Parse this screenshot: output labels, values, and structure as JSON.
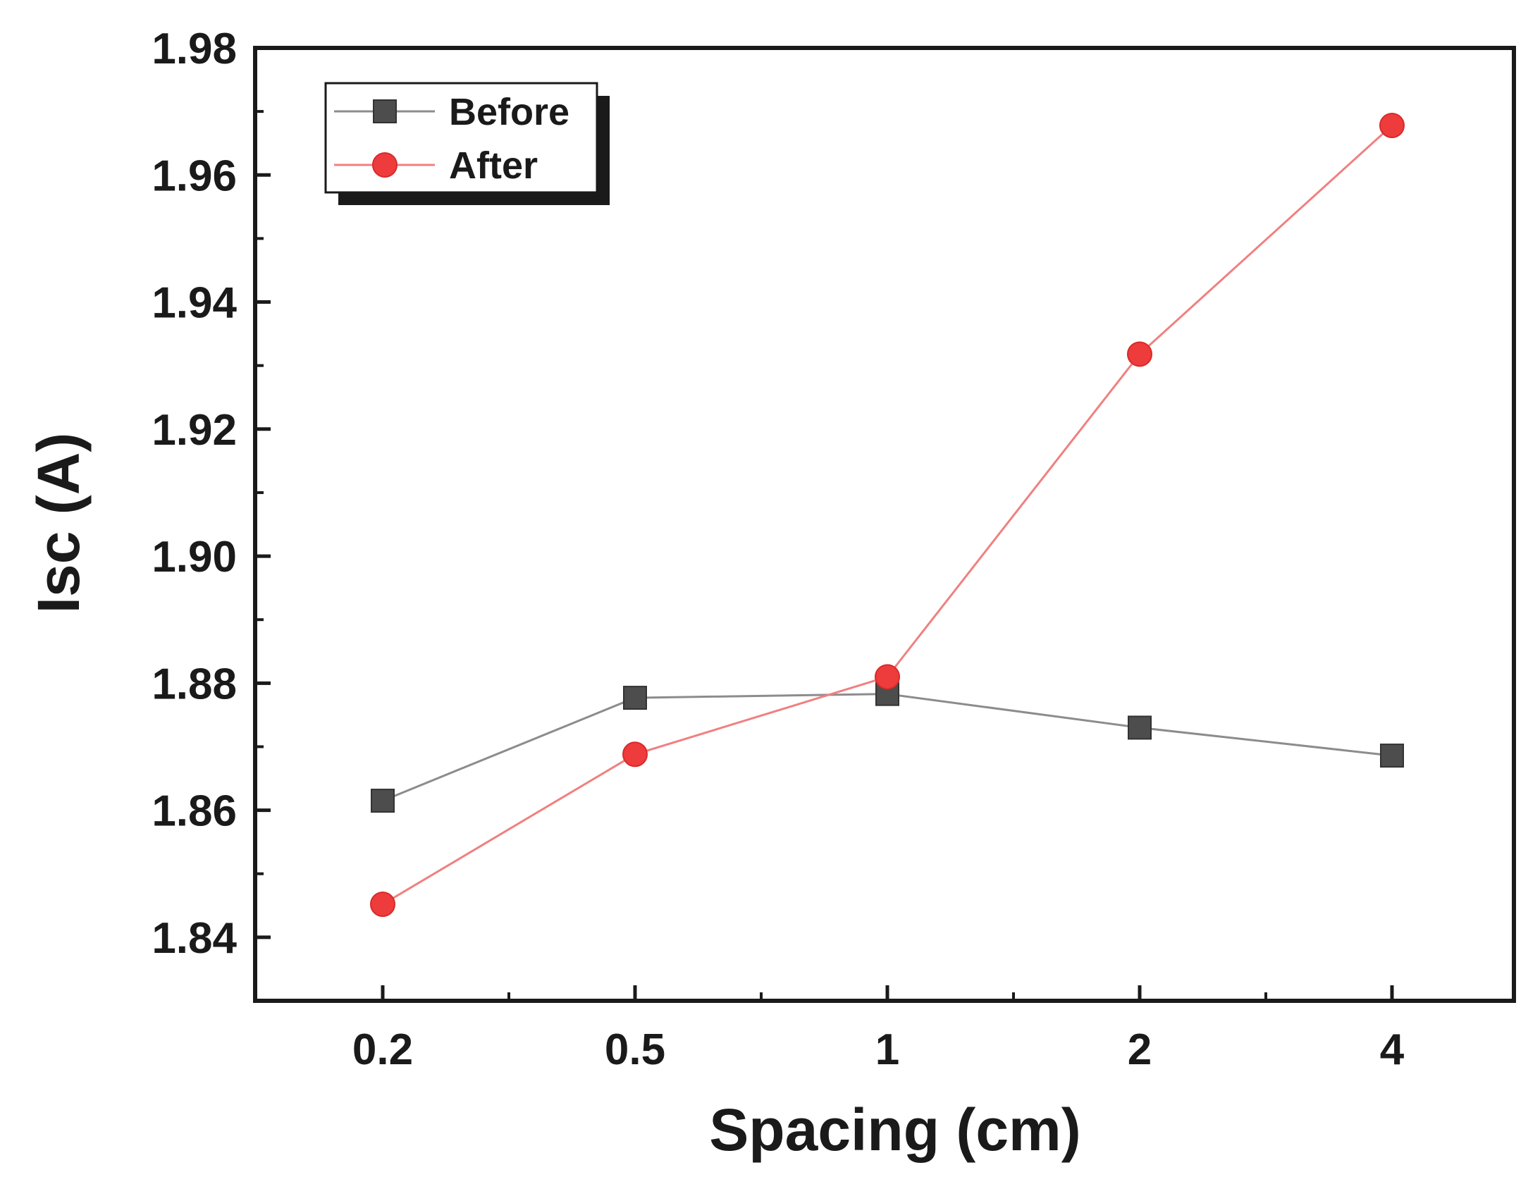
{
  "chart_data": {
    "type": "line",
    "title": "",
    "xlabel": "Spacing (cm)",
    "ylabel": "Isc  (A)",
    "categories": [
      "0.2",
      "0.5",
      "1",
      "2",
      "4"
    ],
    "ylim": [
      1.83,
      1.98
    ],
    "yticks": [
      "1.84",
      "1.86",
      "1.88",
      "1.90",
      "1.92",
      "1.94",
      "1.96",
      "1.98"
    ],
    "grid": false,
    "legend_position": "top-left",
    "series": [
      {
        "name": "Before",
        "marker": "square",
        "color": "#4d4d4d",
        "line_color": "#8c8c8c",
        "values": [
          1.8615,
          1.8777,
          1.8783,
          1.873,
          1.8686
        ]
      },
      {
        "name": "After",
        "marker": "circle",
        "color": "#ee3b3b",
        "line_color": "#f08080",
        "values": [
          1.8452,
          1.8688,
          1.881,
          1.9318,
          1.9678
        ]
      }
    ]
  }
}
